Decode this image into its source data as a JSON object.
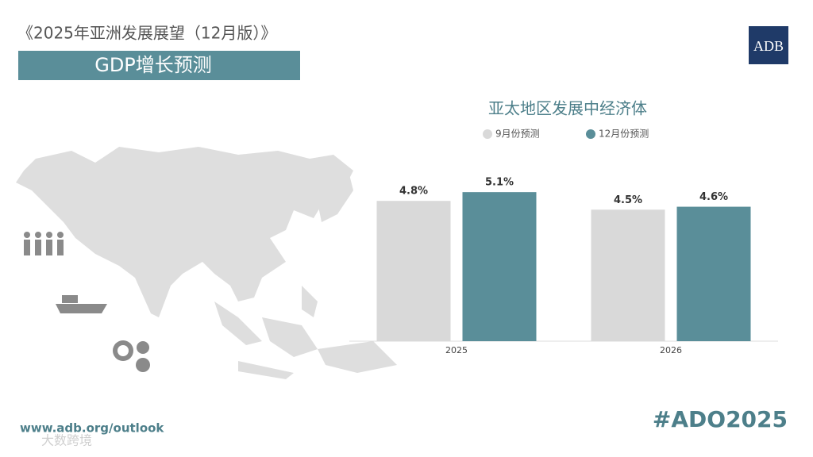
{
  "header": {
    "title": "《2025年亚洲发展展望（12月版）》",
    "banner": "GDP增长预测",
    "logo": "ADB"
  },
  "footer": {
    "url": "www.adb.org/outlook",
    "hashtag": "#ADO2025",
    "watermark": "大数跨境"
  },
  "chart_data": {
    "type": "bar",
    "title": "亚太地区发展中经济体",
    "categories": [
      "2025",
      "2026"
    ],
    "series": [
      {
        "name": "9月份预测",
        "color": "#d9d9d9",
        "values": [
          4.8,
          4.5
        ],
        "value_labels": [
          "4.8%",
          "4.5%"
        ]
      },
      {
        "name": "12月份预测",
        "color": "#5a8e99",
        "values": [
          5.1,
          4.6
        ],
        "value_labels": [
          "5.1%",
          "4.6%"
        ]
      }
    ],
    "ylim": [
      0,
      6
    ]
  }
}
